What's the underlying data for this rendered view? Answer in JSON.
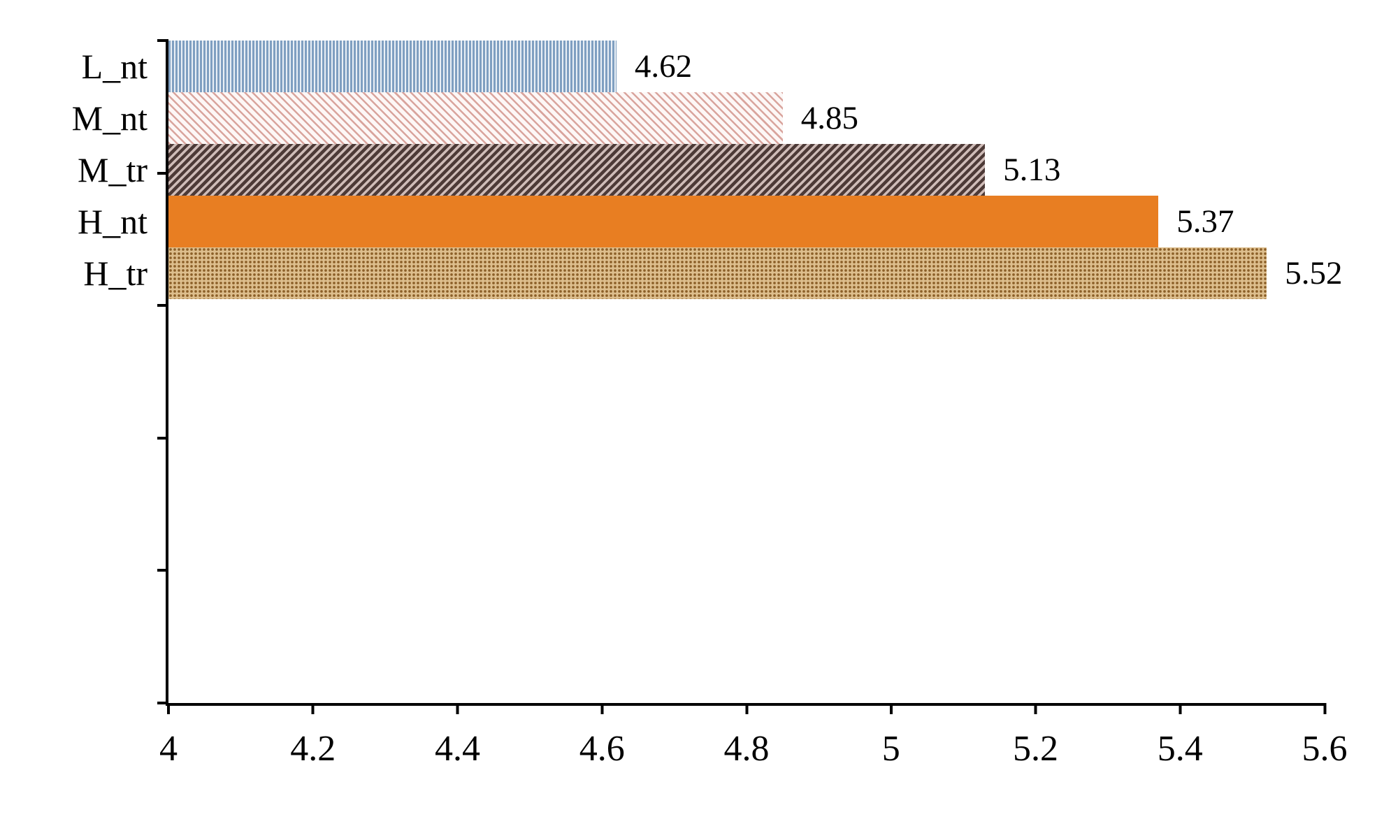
{
  "chart_data": {
    "type": "bar",
    "orientation": "horizontal",
    "title": "",
    "xlabel": "",
    "ylabel": "",
    "grid": false,
    "legend": "none",
    "categories": [
      "L_nt",
      "M_nt",
      "M_tr",
      "H_nt",
      "H_tr"
    ],
    "values": [
      4.62,
      4.85,
      5.13,
      5.37,
      5.52
    ],
    "value_labels": [
      "4.62",
      "4.85",
      "5.13",
      "5.37",
      "5.52"
    ],
    "xlim": [
      4,
      5.6
    ],
    "x_ticks": [
      4,
      4.2,
      4.4,
      4.6,
      4.8,
      5,
      5.2,
      5.4,
      5.6
    ],
    "x_tick_labels": [
      "4",
      "4.2",
      "4.4",
      "4.6",
      "4.8",
      "5",
      "5.2",
      "5.4",
      "5.6"
    ],
    "axis_color": "#000000",
    "bar_styles": [
      {
        "name": "blue-vertical-stripes",
        "pattern": "vertical-stripes",
        "color": "#7f9fc1",
        "background": "#eaf0f6"
      },
      {
        "name": "pink-diagonal-stripes",
        "pattern": "diagonal-stripes-up",
        "color": "#d9a49d",
        "background": "#fdf7f6"
      },
      {
        "name": "maroon-diagonal-stripes",
        "pattern": "diagonal-stripes-down",
        "color": "#4d3a37",
        "background": "#cfbcb8"
      },
      {
        "name": "orange-solid",
        "pattern": "solid",
        "color": "#e87e22",
        "background": "#e87e22"
      },
      {
        "name": "tan-dots",
        "pattern": "dots",
        "color": "#8b5f28",
        "background": "#ddbe8d"
      }
    ]
  }
}
